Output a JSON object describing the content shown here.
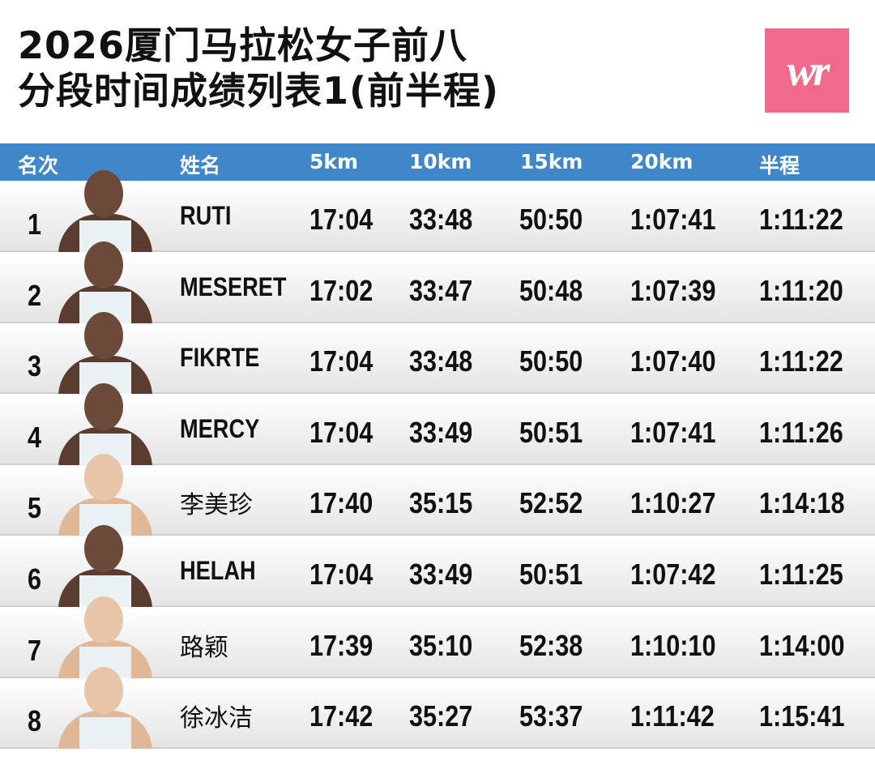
{
  "title": {
    "line1": "2026厦门马拉松女子前八",
    "line2": "分段时间成绩列表1(前半程)"
  },
  "logo": {
    "text": "wr",
    "color": "#f06a8c"
  },
  "header": {
    "color": "#3f87c9",
    "cols": [
      "名次",
      "姓名",
      "5km",
      "10km",
      "15km",
      "20km",
      "半程"
    ]
  },
  "rows": [
    {
      "rank": "1",
      "name": "RUTI",
      "t5": "17:04",
      "t10": "33:48",
      "t15": "50:50",
      "t20": "1:07:41",
      "half": "1:11:22"
    },
    {
      "rank": "2",
      "name": "MESERET",
      "t5": "17:02",
      "t10": "33:47",
      "t15": "50:48",
      "t20": "1:07:39",
      "half": "1:11:20"
    },
    {
      "rank": "3",
      "name": "FIKRTE",
      "t5": "17:04",
      "t10": "33:48",
      "t15": "50:50",
      "t20": "1:07:40",
      "half": "1:11:22"
    },
    {
      "rank": "4",
      "name": "MERCY",
      "t5": "17:04",
      "t10": "33:49",
      "t15": "50:51",
      "t20": "1:07:41",
      "half": "1:11:26"
    },
    {
      "rank": "5",
      "name": "李美珍",
      "t5": "17:40",
      "t10": "35:15",
      "t15": "52:52",
      "t20": "1:10:27",
      "half": "1:14:18"
    },
    {
      "rank": "6",
      "name": "HELAH",
      "t5": "17:04",
      "t10": "33:49",
      "t15": "50:51",
      "t20": "1:07:42",
      "half": "1:11:25"
    },
    {
      "rank": "7",
      "name": "路颖",
      "t5": "17:39",
      "t10": "35:10",
      "t15": "52:38",
      "t20": "1:10:10",
      "half": "1:14:00"
    },
    {
      "rank": "8",
      "name": "徐冰洁",
      "t5": "17:42",
      "t10": "35:27",
      "t15": "53:37",
      "t20": "1:11:42",
      "half": "1:15:41"
    }
  ]
}
